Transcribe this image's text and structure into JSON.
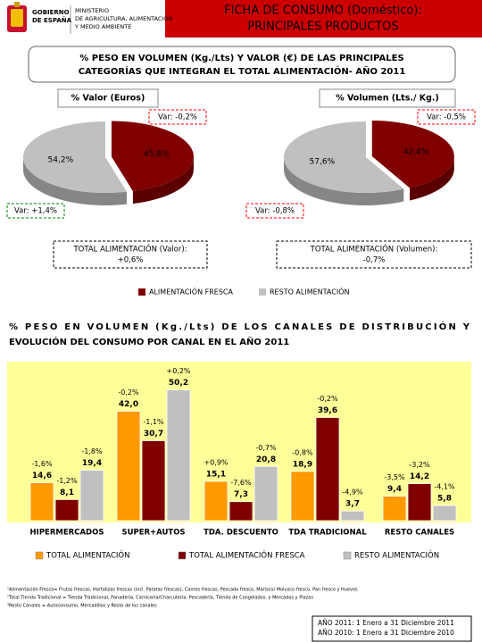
{
  "header": {
    "government": [
      "GOBIERNO",
      "DE ESPAÑA"
    ],
    "ministry": [
      "MINISTERIO",
      "DE AGRICULTURA, ALIMENTACIÓN",
      "Y MEDIO AMBIENTE"
    ],
    "title": [
      "FICHA DE CONSUMO (Doméstico):",
      "PRINCIPALES PRODUCTOS"
    ]
  },
  "section1_title": [
    "% PESO EN VOLUMEN (Kg./Lts) Y VALOR (€) DE LAS PRINCIPALES",
    "CATEGORÍAS QUE INTEGRAN EL TOTAL ALIMENTACIÓN- AÑO 2011"
  ],
  "section2_title": [
    "% PESO EN VOLUMEN  (Kg./Lts) DE LOS CANALES DE DISTRIBUCIÓN Y",
    "EVOLUCIÓN DEL CONSUMO POR CANAL EN EL AÑO 2011"
  ],
  "chart_data": [
    {
      "type": "pie",
      "title": "% Valor (Euros)",
      "categories": [
        "ALIMENTACIÓN FRESCA",
        "RESTO ALIMENTACIÓN"
      ],
      "values": [
        45.8,
        54.2
      ],
      "value_labels": [
        "45,8%",
        "54,2%"
      ],
      "colors": [
        "#800000",
        "#c0c0c0"
      ],
      "changes": [
        "Var: -0,2%",
        "Var: +1,4%"
      ],
      "total_label": "TOTAL ALIMENTACIÓN (Valor):",
      "total_change": "+0,6%"
    },
    {
      "type": "pie",
      "title": "% Volumen (Lts./ Kg.)",
      "categories": [
        "ALIMENTACIÓN FRESCA",
        "RESTO ALIMENTACIÓN"
      ],
      "values": [
        42.4,
        57.6
      ],
      "value_labels": [
        "42,4%",
        "57,6%"
      ],
      "colors": [
        "#800000",
        "#c0c0c0"
      ],
      "changes": [
        "Var: -0,5%",
        "Var: -0,8%"
      ],
      "total_label": "TOTAL ALIMENTACIÓN (Volumen):",
      "total_change": "-0,7%"
    },
    {
      "type": "bar",
      "categories": [
        "HIPERMERCADOS",
        "SUPER+AUTOS",
        "TDA. DESCUENTO",
        "TDA TRADICIONAL",
        "RESTO CANALES"
      ],
      "ylim": [
        0,
        60
      ],
      "series": [
        {
          "name": "TOTAL ALIMENTACIÓN",
          "color": "#ff9900",
          "values": [
            14.6,
            42.0,
            15.1,
            18.9,
            9.4
          ],
          "value_labels": [
            "14,6",
            "42,0",
            "15,1",
            "18,9",
            "9,4"
          ],
          "changes": [
            "-1,6%",
            "-0,2%",
            "+0,9%",
            "-0,8%",
            "-3,5%"
          ]
        },
        {
          "name": "TOTAL ALIMENTACIÓN FRESCA",
          "color": "#800000",
          "values": [
            8.1,
            30.7,
            7.3,
            39.6,
            14.2
          ],
          "value_labels": [
            "8,1",
            "30,7",
            "7,3",
            "39,6",
            "14,2"
          ],
          "changes": [
            "-1,2%",
            "-1,1%",
            "-7,6%",
            "-0,2%",
            "-3,2%"
          ]
        },
        {
          "name": "RESTO ALIMENTACIÓN",
          "color": "#c0c0c0",
          "values": [
            19.4,
            50.2,
            20.8,
            3.7,
            5.8
          ],
          "value_labels": [
            "19,4",
            "50,2",
            "20,8",
            "3,7",
            "5,8"
          ],
          "changes": [
            "-1,8%",
            "+0,2%",
            "-0,7%",
            "-4,9%",
            "-4,1%"
          ]
        }
      ]
    }
  ],
  "footnotes": [
    "¹Alimentación Fresca= Frutas frescas, Hortalizas frescas (incl. Patatas frescas), Carnes frescas, Pescado fresco, Marisco/ Molusco fresco, Pan fresco y Huevos",
    "²Total Tienda Tradicional = Tienda Tradicional, Panadería, Carnicería/Charcutería, Pescadería, Tienda de Congelados, y Mercados y Plazas",
    "³Resto Canales = Autoconsumo, Mercadillos y Resto de los canales"
  ],
  "period_notes": [
    "AÑO 2011: 1 Enero a 31 Diciembre 2011",
    "AÑO 2010: 1 Enero a 31 Diciembre 2010"
  ]
}
